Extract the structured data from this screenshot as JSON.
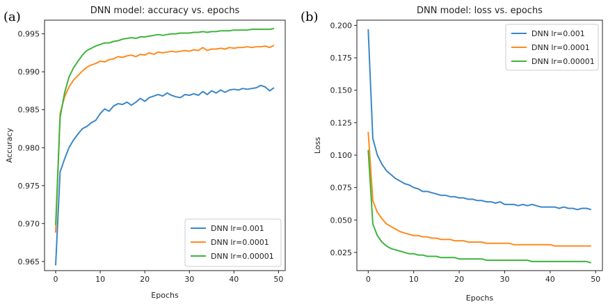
{
  "colors": {
    "blue": "#3a86c8",
    "orange": "#ff8a1c",
    "green": "#3cb43c"
  },
  "chart_data": [
    {
      "type": "line",
      "panel_label": "(a)",
      "title": "DNN model: accuracy vs. epochs",
      "xlabel": "Epochs",
      "ylabel": "Accuracy",
      "xlim": [
        -2.5,
        51.5
      ],
      "ylim": [
        0.9638,
        0.9968
      ],
      "xticks": [
        0,
        10,
        20,
        30,
        40,
        50
      ],
      "yticks": [
        0.965,
        0.97,
        0.975,
        0.98,
        0.985,
        0.99,
        0.995
      ],
      "ytick_labels": [
        "0.965",
        "0.970",
        "0.975",
        "0.980",
        "0.985",
        "0.990",
        "0.995"
      ],
      "grid": false,
      "legend": "lower-right",
      "x": [
        0,
        1,
        2,
        3,
        4,
        5,
        6,
        7,
        8,
        9,
        10,
        11,
        12,
        13,
        14,
        15,
        16,
        17,
        18,
        19,
        20,
        21,
        22,
        23,
        24,
        25,
        26,
        27,
        28,
        29,
        30,
        31,
        32,
        33,
        34,
        35,
        36,
        37,
        38,
        39,
        40,
        41,
        42,
        43,
        44,
        45,
        46,
        47,
        48,
        49
      ],
      "series": [
        {
          "name": "DNN lr=0.001",
          "color": "blue",
          "values": [
            0.9645,
            0.9768,
            0.9785,
            0.98,
            0.981,
            0.9818,
            0.9825,
            0.9828,
            0.9833,
            0.9836,
            0.9845,
            0.9851,
            0.9848,
            0.9855,
            0.9858,
            0.9857,
            0.986,
            0.9856,
            0.986,
            0.9865,
            0.9861,
            0.9866,
            0.9868,
            0.987,
            0.9868,
            0.9872,
            0.9869,
            0.9867,
            0.9866,
            0.987,
            0.9869,
            0.9871,
            0.9869,
            0.9874,
            0.987,
            0.9875,
            0.9872,
            0.9876,
            0.9873,
            0.9876,
            0.9877,
            0.9876,
            0.9878,
            0.9877,
            0.9878,
            0.9879,
            0.9882,
            0.988,
            0.9875,
            0.9879
          ]
        },
        {
          "name": "DNN lr=0.0001",
          "color": "orange",
          "values": [
            0.9688,
            0.9845,
            0.9867,
            0.988,
            0.9889,
            0.9895,
            0.9901,
            0.9906,
            0.9909,
            0.9911,
            0.9914,
            0.9913,
            0.9916,
            0.9917,
            0.992,
            0.9919,
            0.9921,
            0.9922,
            0.992,
            0.9923,
            0.9922,
            0.9925,
            0.9923,
            0.9926,
            0.9925,
            0.9926,
            0.9927,
            0.9926,
            0.9927,
            0.9928,
            0.9927,
            0.9929,
            0.9928,
            0.9932,
            0.9928,
            0.993,
            0.993,
            0.9931,
            0.993,
            0.9932,
            0.9931,
            0.9932,
            0.9932,
            0.9933,
            0.9932,
            0.9933,
            0.9933,
            0.9934,
            0.9932,
            0.9935
          ]
        },
        {
          "name": "DNN lr=0.00001",
          "color": "green",
          "values": [
            0.9698,
            0.984,
            0.9872,
            0.9893,
            0.9905,
            0.9914,
            0.9922,
            0.9928,
            0.9931,
            0.9934,
            0.9936,
            0.9938,
            0.9938,
            0.994,
            0.9941,
            0.9943,
            0.9944,
            0.9945,
            0.9944,
            0.9946,
            0.9946,
            0.9947,
            0.9948,
            0.9949,
            0.9948,
            0.9949,
            0.995,
            0.995,
            0.9951,
            0.9951,
            0.9951,
            0.9952,
            0.9952,
            0.9953,
            0.9952,
            0.9953,
            0.9953,
            0.9954,
            0.9954,
            0.9954,
            0.9955,
            0.9955,
            0.9955,
            0.9955,
            0.9956,
            0.9956,
            0.9956,
            0.9956,
            0.9956,
            0.9957
          ]
        }
      ]
    },
    {
      "type": "line",
      "panel_label": "(b)",
      "title": "DNN model: loss vs. epochs",
      "xlabel": "Epochs",
      "ylabel": "Loss",
      "xlim": [
        -2.5,
        51.5
      ],
      "ylim": [
        0.011,
        0.204
      ],
      "xticks": [
        0,
        10,
        20,
        30,
        40,
        50
      ],
      "yticks": [
        0.025,
        0.05,
        0.075,
        0.1,
        0.125,
        0.15,
        0.175,
        0.2
      ],
      "ytick_labels": [
        "0.025",
        "0.050",
        "0.075",
        "0.100",
        "0.125",
        "0.150",
        "0.175",
        "0.200"
      ],
      "grid": false,
      "legend": "upper-right",
      "x": [
        0,
        1,
        2,
        3,
        4,
        5,
        6,
        7,
        8,
        9,
        10,
        11,
        12,
        13,
        14,
        15,
        16,
        17,
        18,
        19,
        20,
        21,
        22,
        23,
        24,
        25,
        26,
        27,
        28,
        29,
        30,
        31,
        32,
        33,
        34,
        35,
        36,
        37,
        38,
        39,
        40,
        41,
        42,
        43,
        44,
        45,
        46,
        47,
        48,
        49
      ],
      "series": [
        {
          "name": "DNN lr=0.001",
          "color": "blue",
          "values": [
            0.197,
            0.113,
            0.1,
            0.093,
            0.088,
            0.085,
            0.082,
            0.08,
            0.078,
            0.077,
            0.075,
            0.074,
            0.072,
            0.072,
            0.071,
            0.07,
            0.069,
            0.069,
            0.068,
            0.068,
            0.067,
            0.067,
            0.066,
            0.066,
            0.065,
            0.065,
            0.064,
            0.064,
            0.063,
            0.064,
            0.062,
            0.062,
            0.062,
            0.061,
            0.062,
            0.061,
            0.062,
            0.061,
            0.06,
            0.06,
            0.06,
            0.06,
            0.059,
            0.06,
            0.059,
            0.059,
            0.058,
            0.059,
            0.059,
            0.058
          ]
        },
        {
          "name": "DNN lr=0.0001",
          "color": "orange",
          "values": [
            0.118,
            0.065,
            0.056,
            0.051,
            0.047,
            0.045,
            0.043,
            0.041,
            0.04,
            0.039,
            0.038,
            0.038,
            0.037,
            0.037,
            0.036,
            0.036,
            0.035,
            0.035,
            0.035,
            0.034,
            0.034,
            0.034,
            0.033,
            0.033,
            0.033,
            0.033,
            0.032,
            0.032,
            0.032,
            0.032,
            0.032,
            0.032,
            0.031,
            0.031,
            0.031,
            0.031,
            0.031,
            0.031,
            0.031,
            0.031,
            0.031,
            0.03,
            0.03,
            0.03,
            0.03,
            0.03,
            0.03,
            0.03,
            0.03,
            0.03
          ]
        },
        {
          "name": "DNN lr=0.00001",
          "color": "green",
          "values": [
            0.104,
            0.047,
            0.038,
            0.033,
            0.03,
            0.028,
            0.027,
            0.026,
            0.025,
            0.024,
            0.024,
            0.023,
            0.023,
            0.022,
            0.022,
            0.022,
            0.021,
            0.021,
            0.021,
            0.021,
            0.02,
            0.02,
            0.02,
            0.02,
            0.02,
            0.02,
            0.019,
            0.019,
            0.019,
            0.019,
            0.019,
            0.019,
            0.019,
            0.019,
            0.019,
            0.019,
            0.018,
            0.018,
            0.018,
            0.018,
            0.018,
            0.018,
            0.018,
            0.018,
            0.018,
            0.018,
            0.018,
            0.018,
            0.018,
            0.017
          ]
        }
      ]
    }
  ]
}
